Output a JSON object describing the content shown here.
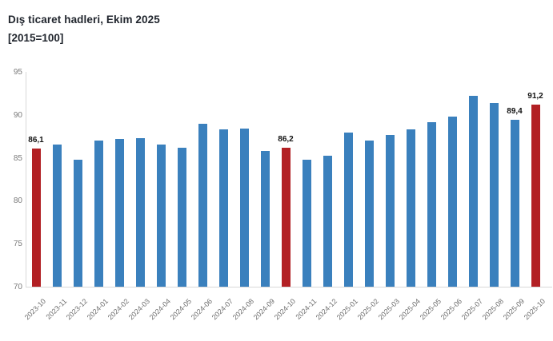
{
  "header": {
    "title": "Dış ticaret hadleri, Ekim 2025",
    "subtitle": "[2015=100]"
  },
  "colors": {
    "bar_default": "#3a80bd",
    "bar_highlight": "#b22024",
    "axis_line": "#d8d8d8",
    "tick_text": "#7a7a7a",
    "data_label_text": "#111111",
    "title_text": "#21262e"
  },
  "chart_data": {
    "type": "bar",
    "title": "Dış ticaret hadleri, Ekim 2025",
    "subtitle": "[2015=100]",
    "categories": [
      "2023-10",
      "2023-11",
      "2023-12",
      "2024-01",
      "2024-02",
      "2024-03",
      "2024-04",
      "2024-05",
      "2024-06",
      "2024-07",
      "2024-08",
      "2024-09",
      "2024-10",
      "2024-11",
      "2024-12",
      "2025-01",
      "2025-02",
      "2025-03",
      "2025-04",
      "2025-05",
      "2025-06",
      "2025-07",
      "2025-08",
      "2025-09",
      "2025-10"
    ],
    "values": [
      86.1,
      86.5,
      84.8,
      87.0,
      87.2,
      87.3,
      86.5,
      86.2,
      89.0,
      88.3,
      88.4,
      85.8,
      86.2,
      84.8,
      85.2,
      87.9,
      87.0,
      87.7,
      88.3,
      89.1,
      89.8,
      92.2,
      91.4,
      89.4,
      91.2
    ],
    "highlighted_categories": [
      "2023-10",
      "2024-10",
      "2025-10"
    ],
    "data_labels": {
      "2023-10": "86,1",
      "2024-10": "86,2",
      "2025-09": "89,4",
      "2025-10": "91,2"
    },
    "xlabel": "",
    "ylabel": "",
    "ylim": [
      70,
      95
    ],
    "yticks": [
      95,
      90,
      85,
      80,
      75,
      70
    ],
    "grid": false,
    "legend": false
  }
}
